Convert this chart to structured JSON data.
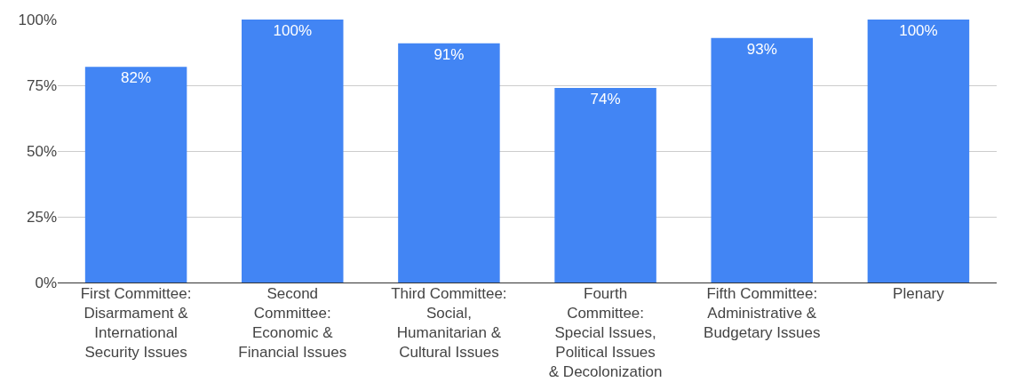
{
  "chart_data": {
    "type": "bar",
    "categories": [
      "First Committee: Disarmament & International Security Issues",
      "Second Committee: Economic & Financial Issues",
      "Third Committee: Social, Humanitarian & Cultural Issues",
      "Fourth Committee: Special Issues, Political Issues & Decolonization",
      "Fifth Committee: Administrative & Budgetary Issues",
      "Plenary"
    ],
    "values": [
      82,
      100,
      91,
      74,
      93,
      100
    ],
    "value_labels": [
      "82%",
      "100%",
      "91%",
      "74%",
      "93%",
      "100%"
    ],
    "color": "#4285f4",
    "ylim": [
      0,
      100
    ],
    "yticks": [
      {
        "value": 0,
        "label": "0%"
      },
      {
        "value": 25,
        "label": "25%"
      },
      {
        "value": 50,
        "label": "50%"
      },
      {
        "value": 75,
        "label": "75%"
      },
      {
        "value": 100,
        "label": "100%"
      }
    ],
    "grid": "y"
  }
}
